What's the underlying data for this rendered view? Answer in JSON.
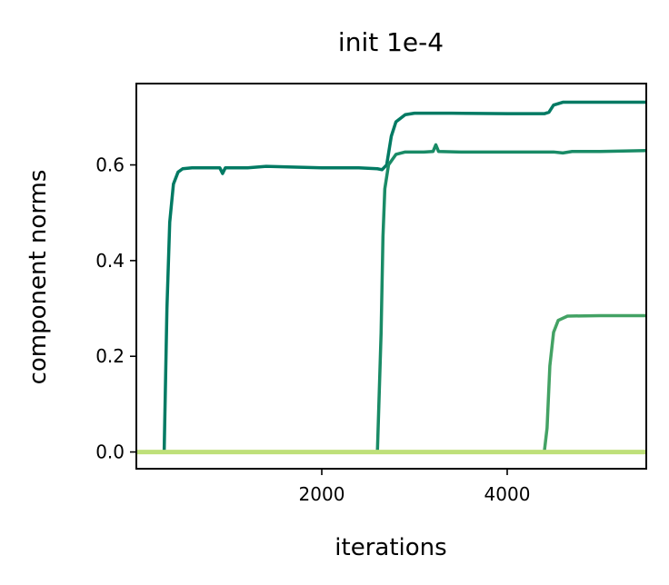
{
  "chart_data": {
    "type": "line",
    "title": "init 1e-4",
    "xlabel": "iterations",
    "ylabel": "component norms",
    "xlim": [
      0,
      5500
    ],
    "ylim": [
      -0.035,
      0.77
    ],
    "xticks": [
      2000,
      4000
    ],
    "xtick_labels": [
      "2000",
      "4000"
    ],
    "yticks": [
      0.0,
      0.2,
      0.4,
      0.6
    ],
    "ytick_labels": [
      "0.0",
      "0.2",
      "0.4",
      "0.6"
    ],
    "grid": false,
    "series": [
      {
        "color": "#007a63",
        "points": [
          [
            0,
            0
          ],
          [
            300,
            0
          ],
          [
            330,
            0.3
          ],
          [
            360,
            0.48
          ],
          [
            400,
            0.56
          ],
          [
            450,
            0.585
          ],
          [
            500,
            0.592
          ],
          [
            600,
            0.594
          ],
          [
            900,
            0.594
          ],
          [
            930,
            0.582
          ],
          [
            960,
            0.594
          ],
          [
            1200,
            0.594
          ],
          [
            1400,
            0.597
          ],
          [
            2000,
            0.594
          ],
          [
            2400,
            0.594
          ],
          [
            2600,
            0.592
          ],
          [
            2650,
            0.59
          ],
          [
            2700,
            0.6
          ],
          [
            2750,
            0.66
          ],
          [
            2800,
            0.69
          ],
          [
            2900,
            0.705
          ],
          [
            3000,
            0.708
          ],
          [
            3300,
            0.708
          ],
          [
            3400,
            0.708
          ],
          [
            4000,
            0.707
          ],
          [
            4400,
            0.707
          ],
          [
            4450,
            0.71
          ],
          [
            4500,
            0.725
          ],
          [
            4600,
            0.731
          ],
          [
            5000,
            0.731
          ],
          [
            5500,
            0.731
          ]
        ]
      },
      {
        "color": "#198b66",
        "points": [
          [
            0,
            0
          ],
          [
            2600,
            0
          ],
          [
            2640,
            0.25
          ],
          [
            2660,
            0.45
          ],
          [
            2680,
            0.55
          ],
          [
            2720,
            0.6
          ],
          [
            2800,
            0.622
          ],
          [
            2900,
            0.627
          ],
          [
            3100,
            0.627
          ],
          [
            3200,
            0.628
          ],
          [
            3230,
            0.642
          ],
          [
            3260,
            0.628
          ],
          [
            3500,
            0.627
          ],
          [
            4000,
            0.627
          ],
          [
            4500,
            0.627
          ],
          [
            4600,
            0.625
          ],
          [
            4700,
            0.628
          ],
          [
            5000,
            0.628
          ],
          [
            5500,
            0.63
          ]
        ]
      },
      {
        "color": "#43a264",
        "points": [
          [
            0,
            0
          ],
          [
            4400,
            0
          ],
          [
            4430,
            0.05
          ],
          [
            4460,
            0.18
          ],
          [
            4500,
            0.25
          ],
          [
            4550,
            0.275
          ],
          [
            4650,
            0.284
          ],
          [
            5000,
            0.285
          ],
          [
            5500,
            0.285
          ]
        ]
      },
      {
        "color": "#bfe07a",
        "points": [
          [
            0,
            0
          ],
          [
            5500,
            0
          ]
        ]
      }
    ]
  }
}
